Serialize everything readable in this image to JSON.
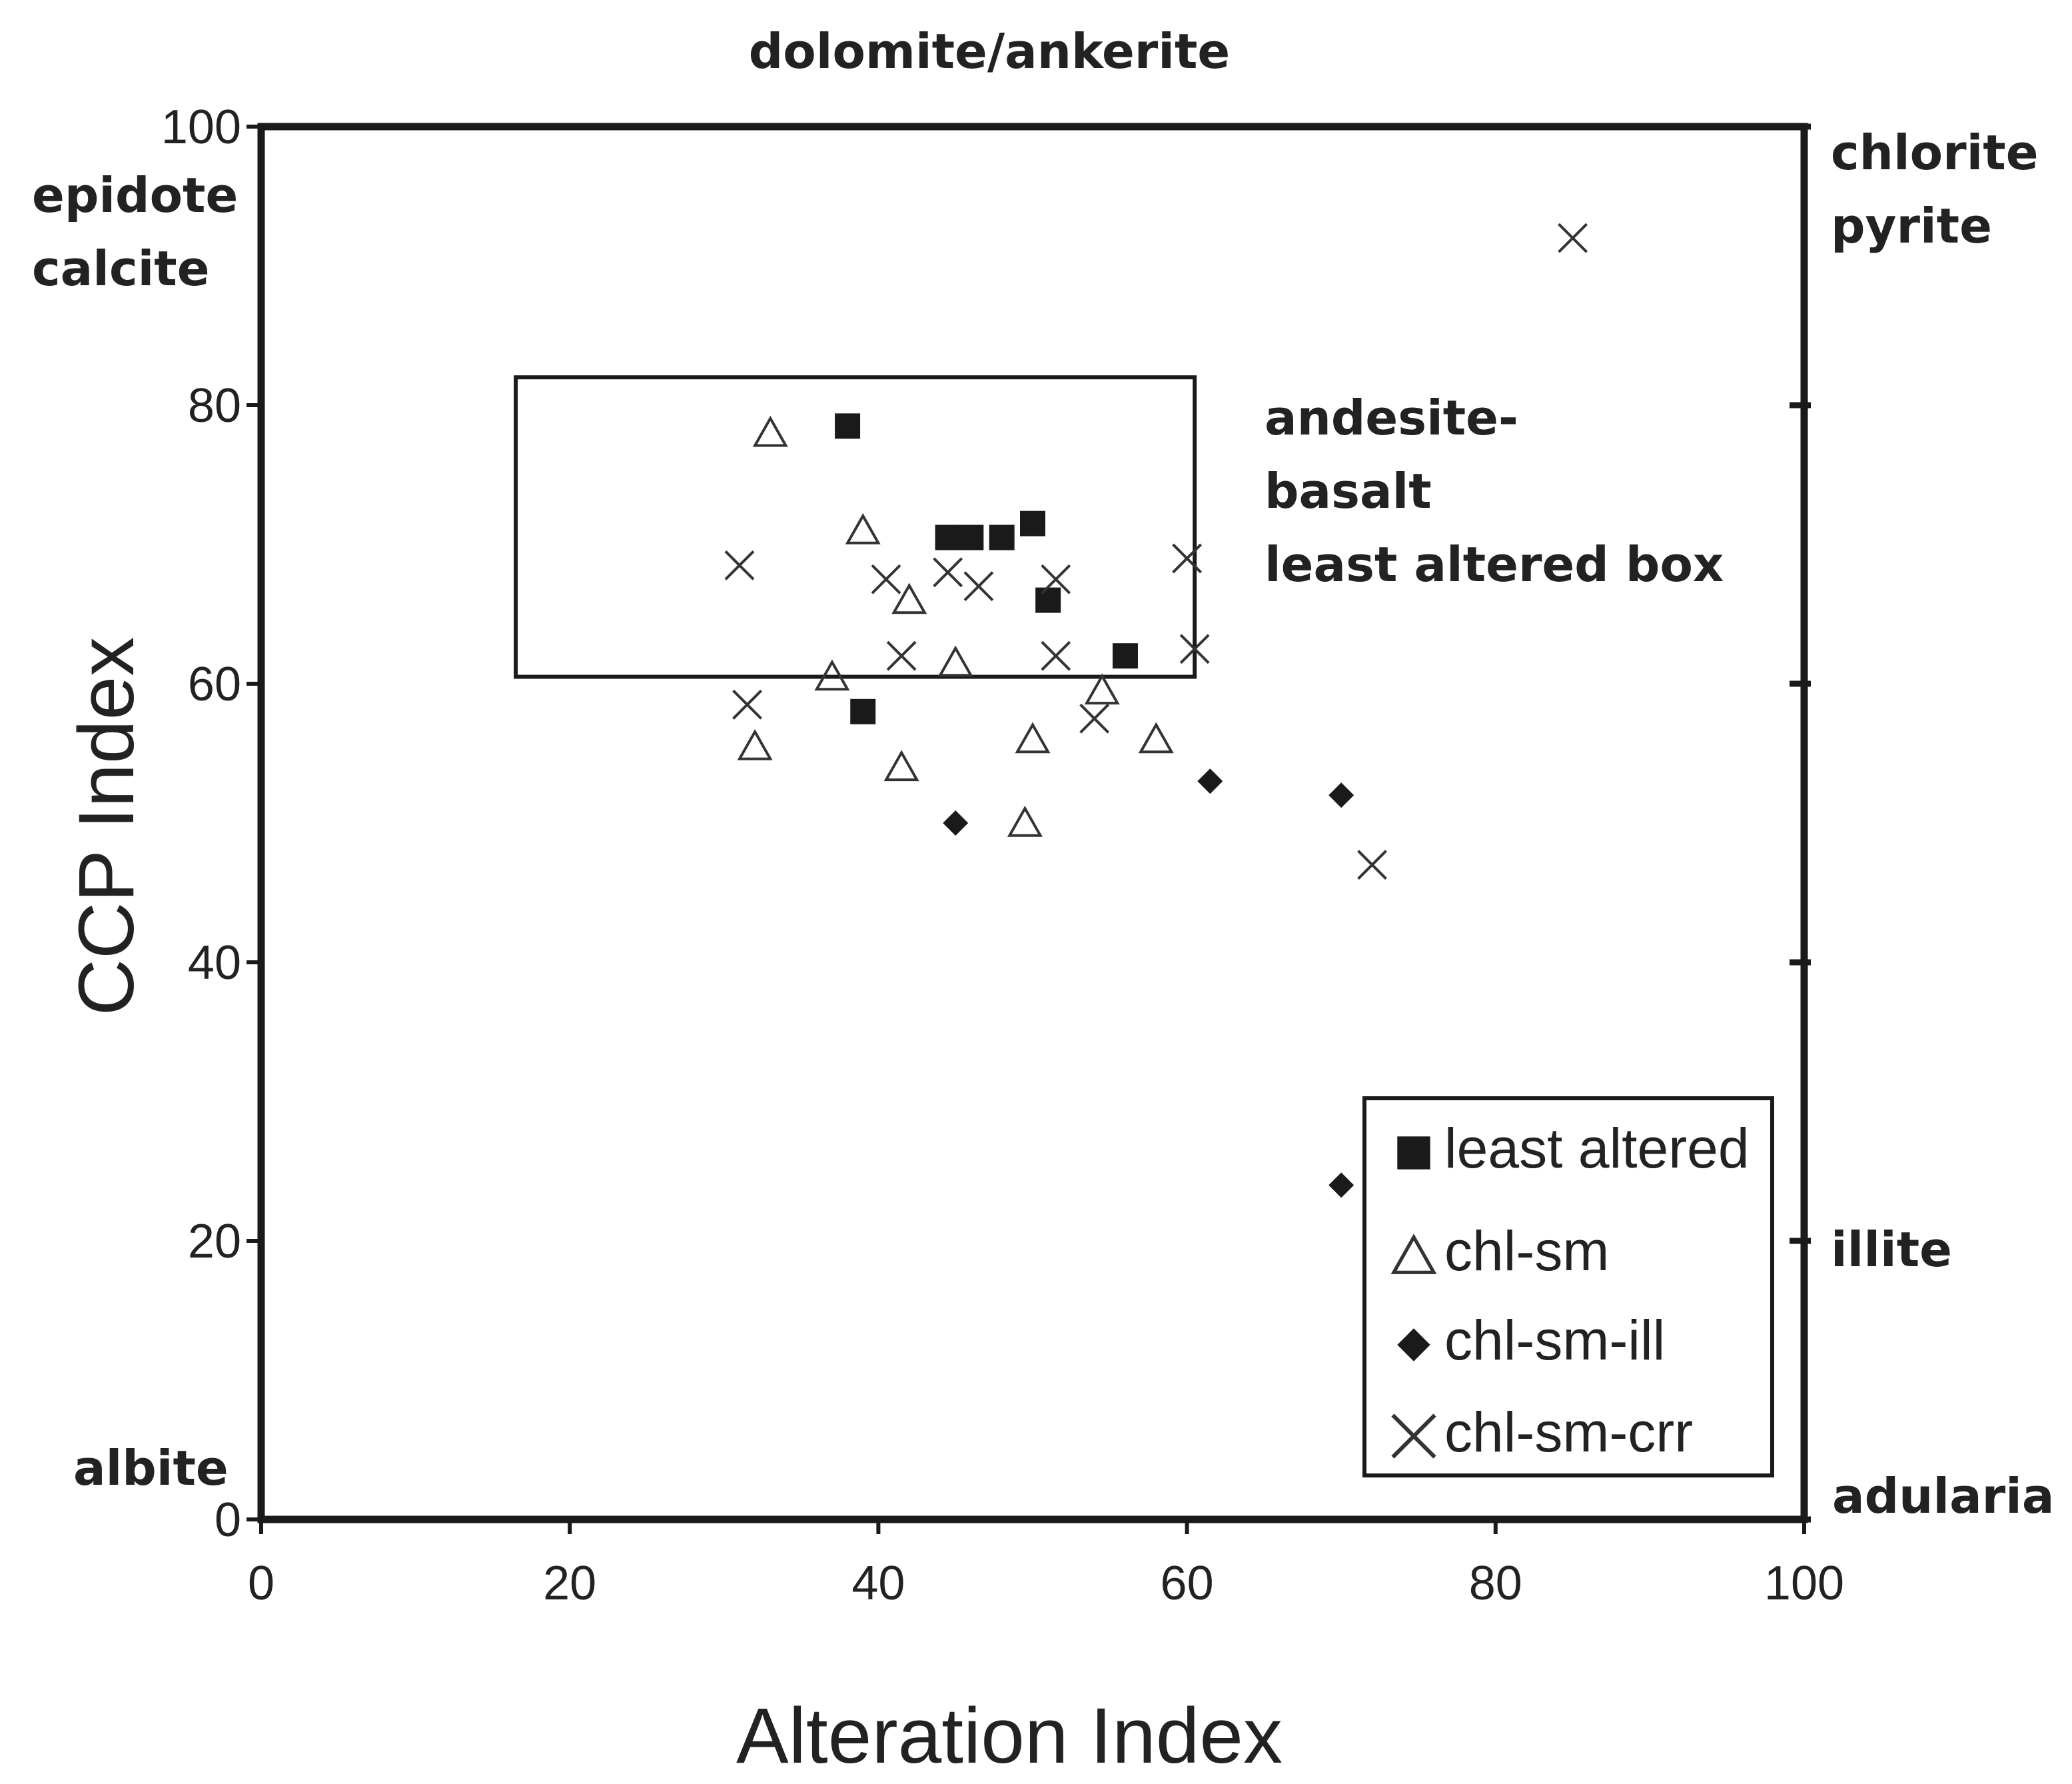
{
  "chart_data": {
    "type": "scatter",
    "title": "",
    "xlabel": "Alteration Index",
    "ylabel": "CCP Index",
    "xlim": [
      0,
      100
    ],
    "ylim": [
      0,
      100
    ],
    "x_ticks": [
      0,
      20,
      40,
      60,
      80,
      100
    ],
    "y_ticks": [
      0,
      20,
      40,
      60,
      80,
      100
    ],
    "x_tick_labels": [
      "0",
      "20",
      "40",
      "60",
      "80",
      "100"
    ],
    "y_tick_labels": [
      "0",
      "20",
      "40",
      "60",
      "80",
      "100"
    ],
    "grid": false,
    "legend_position": "bottom-right",
    "corner_labels": {
      "top": "dolomite/ankerite",
      "top_left": [
        "epidote",
        "calcite"
      ],
      "top_right": [
        "chlorite",
        "pyrite"
      ],
      "right_mid": "illite",
      "bottom_left": "albite",
      "bottom_right": "adularia"
    },
    "least_altered_box": {
      "x_range": [
        16.5,
        60.5
      ],
      "y_range": [
        60.5,
        82
      ],
      "label": [
        "andesite-",
        "basalt",
        "least altered box"
      ]
    },
    "series": [
      {
        "name": "least altered",
        "marker": "filled-square",
        "points": [
          {
            "x": 38.0,
            "y": 78.5
          },
          {
            "x": 44.5,
            "y": 70.5
          },
          {
            "x": 46.0,
            "y": 70.5
          },
          {
            "x": 48.0,
            "y": 70.5
          },
          {
            "x": 50.0,
            "y": 71.5
          },
          {
            "x": 51.0,
            "y": 66.0
          },
          {
            "x": 56.0,
            "y": 62.0
          },
          {
            "x": 39.0,
            "y": 58.0
          }
        ]
      },
      {
        "name": "chl-sm",
        "marker": "open-triangle",
        "points": [
          {
            "x": 33.0,
            "y": 78.0
          },
          {
            "x": 39.0,
            "y": 71.0
          },
          {
            "x": 42.0,
            "y": 66.0
          },
          {
            "x": 37.0,
            "y": 60.5
          },
          {
            "x": 45.0,
            "y": 61.5
          },
          {
            "x": 54.5,
            "y": 59.5
          },
          {
            "x": 32.0,
            "y": 55.5
          },
          {
            "x": 41.5,
            "y": 54.0
          },
          {
            "x": 50.0,
            "y": 56.0
          },
          {
            "x": 58.0,
            "y": 56.0
          },
          {
            "x": 49.5,
            "y": 50.0
          }
        ]
      },
      {
        "name": "chl-sm-ill",
        "marker": "filled-diamond",
        "points": [
          {
            "x": 45.0,
            "y": 50.0
          },
          {
            "x": 61.5,
            "y": 53.0
          },
          {
            "x": 70.0,
            "y": 52.0
          },
          {
            "x": 70.0,
            "y": 24.0
          }
        ]
      },
      {
        "name": "chl-sm-crr",
        "marker": "x",
        "points": [
          {
            "x": 85.0,
            "y": 92.0
          },
          {
            "x": 31.0,
            "y": 68.5
          },
          {
            "x": 40.5,
            "y": 67.5
          },
          {
            "x": 44.5,
            "y": 68.0
          },
          {
            "x": 46.5,
            "y": 67.0
          },
          {
            "x": 51.5,
            "y": 67.5
          },
          {
            "x": 60.0,
            "y": 69.0
          },
          {
            "x": 41.5,
            "y": 62.0
          },
          {
            "x": 51.5,
            "y": 62.0
          },
          {
            "x": 60.5,
            "y": 62.5
          },
          {
            "x": 31.5,
            "y": 58.5
          },
          {
            "x": 54.0,
            "y": 57.5
          },
          {
            "x": 72.0,
            "y": 47.0
          }
        ]
      }
    ]
  }
}
